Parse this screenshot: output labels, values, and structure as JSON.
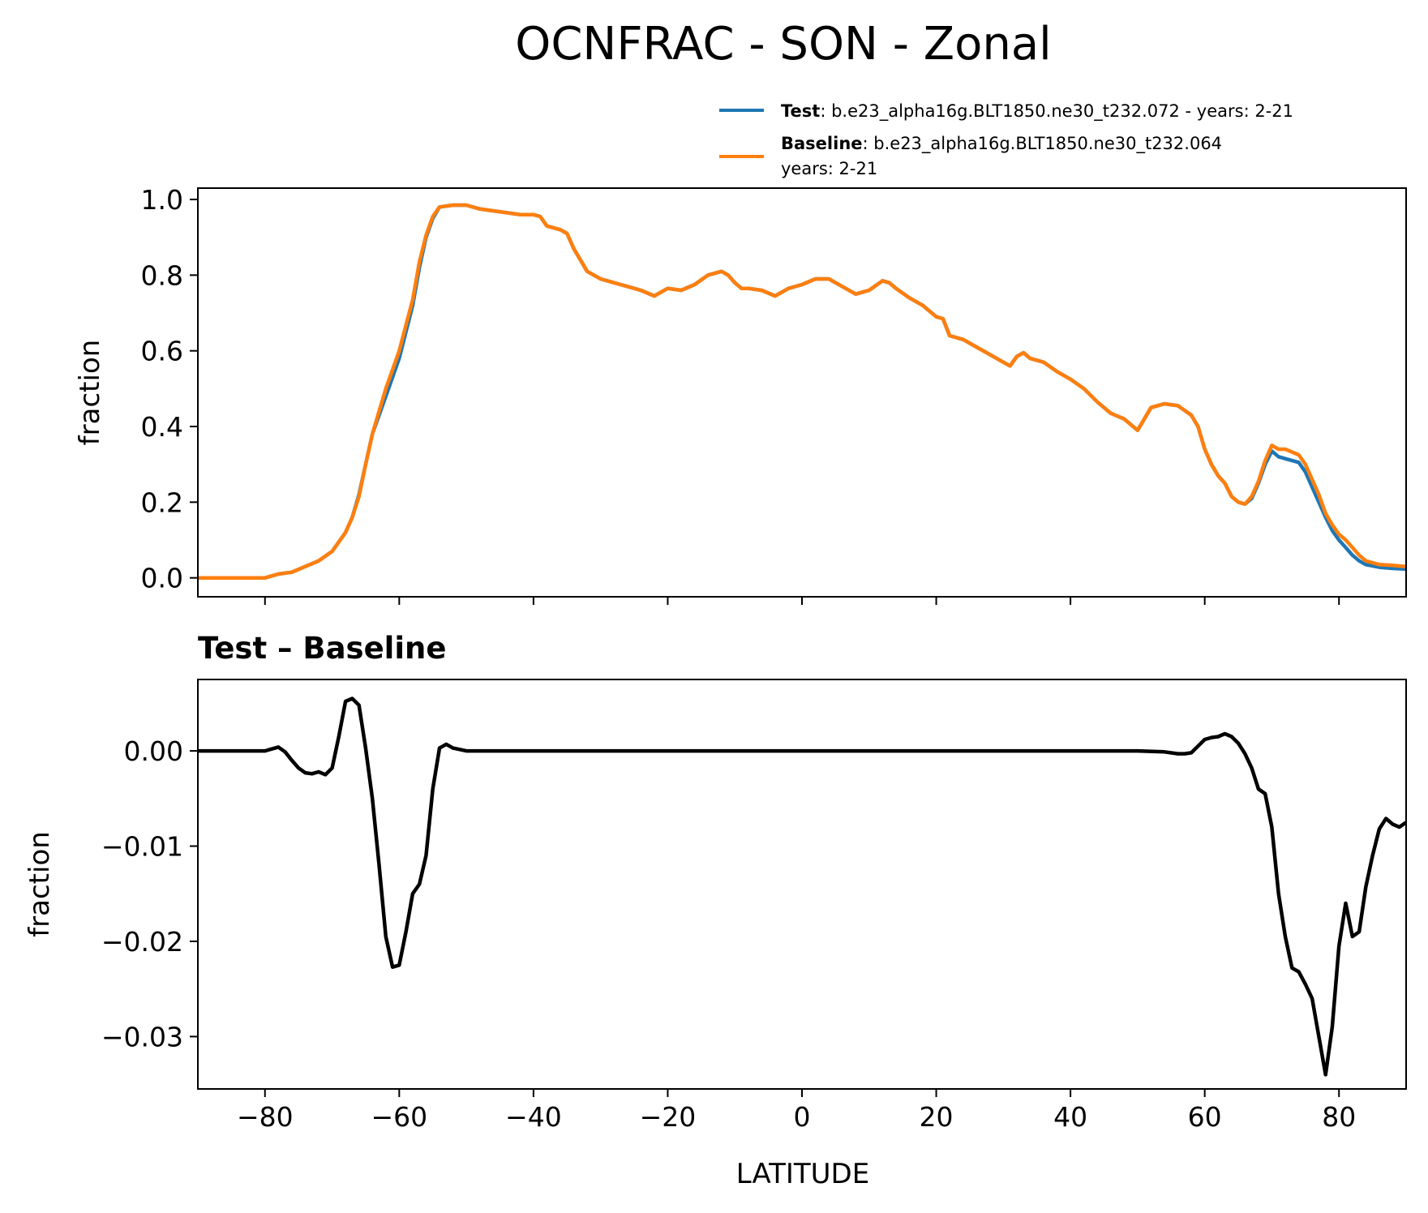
{
  "figure": {
    "title": "OCNFRAC - SON - Zonal"
  },
  "legend": {
    "test": {
      "label_bold": "Test",
      "label_rest": ": b.e23_alpha16g.BLT1850.ne30_t232.072 - years: 2-21"
    },
    "baseline": {
      "label_bold": "Baseline",
      "label_rest": ": b.e23_alpha16g.BLT1850.ne30_t232.064",
      "label_line2": "years: 2-21"
    }
  },
  "colors": {
    "test": "#1f77b4",
    "baseline": "#ff7f0e",
    "diff": "#000000"
  },
  "chart_data": [
    {
      "type": "line",
      "panel": "top",
      "title": "",
      "xlabel": "",
      "ylabel": "fraction",
      "xlim": [
        -90,
        90
      ],
      "ylim": [
        -0.05,
        1.03
      ],
      "yticks": [
        0.0,
        0.2,
        0.4,
        0.6,
        0.8,
        1.0
      ],
      "ytick_labels": [
        "0.0",
        "0.2",
        "0.4",
        "0.6",
        "0.8",
        "1.0"
      ],
      "xticks": [
        -80,
        -60,
        -40,
        -20,
        0,
        20,
        40,
        60,
        80
      ],
      "legend_position": "top-right (outside axes)",
      "series": [
        {
          "name": "Test",
          "x": [
            -90,
            -88,
            -86,
            -84,
            -82,
            -80,
            -79,
            -78,
            -76,
            -74,
            -72,
            -70,
            -68,
            -67,
            -66,
            -65,
            -64,
            -62,
            -60,
            -58,
            -57,
            -56,
            -55,
            -54,
            -52,
            -50,
            -48,
            -46,
            -44,
            -42,
            -40,
            -39,
            -38,
            -36,
            -35,
            -34,
            -32,
            -30,
            -28,
            -26,
            -24,
            -22,
            -20,
            -18,
            -16,
            -14,
            -12,
            -11,
            -10,
            -9,
            -8,
            -6,
            -4,
            -2,
            0,
            2,
            4,
            6,
            8,
            10,
            12,
            13,
            14,
            16,
            18,
            20,
            21,
            22,
            24,
            26,
            28,
            30,
            31,
            32,
            33,
            34,
            36,
            38,
            40,
            42,
            44,
            46,
            48,
            50,
            52,
            53,
            54,
            56,
            58,
            59,
            60,
            61,
            62,
            63,
            64,
            65,
            66,
            67,
            68,
            69,
            70,
            71,
            72,
            74,
            75,
            76,
            77,
            78,
            79,
            80,
            81,
            82,
            83,
            84,
            86,
            88,
            90
          ],
          "values": [
            0.0,
            0.0,
            0.0,
            0.0,
            0.0,
            0.0,
            0.005,
            0.01,
            0.015,
            0.03,
            0.045,
            0.07,
            0.12,
            0.16,
            0.22,
            0.3,
            0.38,
            0.48,
            0.58,
            0.72,
            0.82,
            0.9,
            0.95,
            0.98,
            0.985,
            0.985,
            0.975,
            0.97,
            0.965,
            0.96,
            0.96,
            0.955,
            0.93,
            0.92,
            0.91,
            0.87,
            0.81,
            0.79,
            0.78,
            0.77,
            0.76,
            0.745,
            0.765,
            0.76,
            0.775,
            0.8,
            0.81,
            0.8,
            0.78,
            0.765,
            0.765,
            0.76,
            0.745,
            0.765,
            0.775,
            0.79,
            0.79,
            0.77,
            0.75,
            0.76,
            0.785,
            0.78,
            0.765,
            0.74,
            0.72,
            0.69,
            0.685,
            0.64,
            0.63,
            0.61,
            0.59,
            0.57,
            0.56,
            0.585,
            0.595,
            0.58,
            0.57,
            0.545,
            0.525,
            0.5,
            0.465,
            0.435,
            0.42,
            0.39,
            0.45,
            0.455,
            0.46,
            0.455,
            0.43,
            0.4,
            0.34,
            0.3,
            0.27,
            0.25,
            0.215,
            0.2,
            0.195,
            0.21,
            0.25,
            0.3,
            0.335,
            0.32,
            0.315,
            0.305,
            0.28,
            0.24,
            0.2,
            0.16,
            0.125,
            0.1,
            0.08,
            0.06,
            0.045,
            0.035,
            0.028,
            0.025,
            0.023
          ]
        },
        {
          "name": "Baseline",
          "x": [
            -90,
            -88,
            -86,
            -84,
            -82,
            -80,
            -79,
            -78,
            -76,
            -74,
            -72,
            -70,
            -68,
            -67,
            -66,
            -65,
            -64,
            -62,
            -60,
            -58,
            -57,
            -56,
            -55,
            -54,
            -52,
            -50,
            -48,
            -46,
            -44,
            -42,
            -40,
            -39,
            -38,
            -36,
            -35,
            -34,
            -32,
            -30,
            -28,
            -26,
            -24,
            -22,
            -20,
            -18,
            -16,
            -14,
            -12,
            -11,
            -10,
            -9,
            -8,
            -6,
            -4,
            -2,
            0,
            2,
            4,
            6,
            8,
            10,
            12,
            13,
            14,
            16,
            18,
            20,
            21,
            22,
            24,
            26,
            28,
            30,
            31,
            32,
            33,
            34,
            36,
            38,
            40,
            42,
            44,
            46,
            48,
            50,
            52,
            53,
            54,
            56,
            58,
            59,
            60,
            61,
            62,
            63,
            64,
            65,
            66,
            67,
            68,
            69,
            70,
            71,
            72,
            74,
            75,
            76,
            77,
            78,
            79,
            80,
            81,
            82,
            83,
            84,
            86,
            88,
            90
          ],
          "values": [
            0.0,
            0.0,
            0.0,
            0.0,
            0.0,
            0.0,
            0.005,
            0.01,
            0.015,
            0.03,
            0.045,
            0.07,
            0.12,
            0.16,
            0.215,
            0.3,
            0.38,
            0.5,
            0.6,
            0.735,
            0.835,
            0.905,
            0.955,
            0.98,
            0.985,
            0.985,
            0.975,
            0.97,
            0.965,
            0.96,
            0.96,
            0.955,
            0.93,
            0.92,
            0.91,
            0.87,
            0.81,
            0.79,
            0.78,
            0.77,
            0.76,
            0.745,
            0.765,
            0.76,
            0.775,
            0.8,
            0.81,
            0.8,
            0.78,
            0.765,
            0.765,
            0.76,
            0.745,
            0.765,
            0.775,
            0.79,
            0.79,
            0.77,
            0.75,
            0.76,
            0.785,
            0.78,
            0.765,
            0.74,
            0.72,
            0.69,
            0.685,
            0.64,
            0.63,
            0.61,
            0.59,
            0.57,
            0.56,
            0.585,
            0.595,
            0.58,
            0.57,
            0.545,
            0.525,
            0.5,
            0.465,
            0.435,
            0.42,
            0.39,
            0.45,
            0.455,
            0.46,
            0.455,
            0.43,
            0.4,
            0.34,
            0.3,
            0.27,
            0.25,
            0.215,
            0.2,
            0.195,
            0.215,
            0.255,
            0.31,
            0.35,
            0.34,
            0.34,
            0.325,
            0.3,
            0.26,
            0.22,
            0.17,
            0.14,
            0.115,
            0.1,
            0.08,
            0.06,
            0.045,
            0.035,
            0.033,
            0.03
          ]
        }
      ]
    },
    {
      "type": "line",
      "panel": "bottom",
      "title": "Test – Baseline",
      "xlabel": "LATITUDE",
      "ylabel": "fraction",
      "xlim": [
        -90,
        90
      ],
      "ylim": [
        -0.0355,
        0.0075
      ],
      "yticks": [
        0.0,
        -0.01,
        -0.02,
        -0.03
      ],
      "ytick_labels": [
        "0.00",
        "−0.01",
        "−0.02",
        "−0.03"
      ],
      "xticks": [
        -80,
        -60,
        -40,
        -20,
        0,
        20,
        40,
        60,
        80
      ],
      "xtick_labels": [
        "−80",
        "−60",
        "−40",
        "−20",
        "0",
        "20",
        "40",
        "60",
        "80"
      ],
      "series": [
        {
          "name": "Test – Baseline",
          "x": [
            -90,
            -88,
            -86,
            -84,
            -82,
            -80,
            -79,
            -78,
            -77,
            -76,
            -75,
            -74,
            -73,
            -72,
            -71,
            -70,
            -69,
            -68,
            -67,
            -66,
            -65,
            -64,
            -63,
            -62,
            -61,
            -60,
            -59,
            -58,
            -57,
            -56,
            -55,
            -54,
            -53,
            -52,
            -50,
            -40,
            -20,
            0,
            20,
            40,
            50,
            54,
            56,
            57,
            58,
            59,
            60,
            61,
            62,
            63,
            64,
            65,
            66,
            67,
            68,
            69,
            70,
            71,
            72,
            73,
            74,
            75,
            76,
            77,
            78,
            79,
            80,
            81,
            82,
            83,
            84,
            85,
            86,
            87,
            88,
            89,
            90
          ],
          "values": [
            0.0,
            0.0,
            0.0,
            0.0,
            0.0,
            0.0,
            0.0002,
            0.0004,
            -0.0001,
            -0.001,
            -0.0018,
            -0.0023,
            -0.0024,
            -0.0022,
            -0.0025,
            -0.0018,
            0.0015,
            0.0052,
            0.0055,
            0.0048,
            0.0003,
            -0.005,
            -0.012,
            -0.0195,
            -0.0227,
            -0.0225,
            -0.019,
            -0.015,
            -0.014,
            -0.011,
            -0.004,
            0.0003,
            0.0007,
            0.0003,
            0.0,
            0.0,
            0.0,
            0.0,
            0.0,
            0.0,
            0.0,
            -0.0001,
            -0.0003,
            -0.0003,
            -0.0002,
            0.0005,
            0.0012,
            0.0014,
            0.0015,
            0.0018,
            0.0015,
            0.0008,
            -0.0003,
            -0.0018,
            -0.004,
            -0.0045,
            -0.008,
            -0.015,
            -0.0195,
            -0.0228,
            -0.0232,
            -0.0245,
            -0.026,
            -0.03,
            -0.034,
            -0.029,
            -0.0205,
            -0.016,
            -0.0195,
            -0.019,
            -0.0143,
            -0.011,
            -0.0082,
            -0.0071,
            -0.0077,
            -0.008,
            -0.0075
          ]
        }
      ]
    }
  ]
}
